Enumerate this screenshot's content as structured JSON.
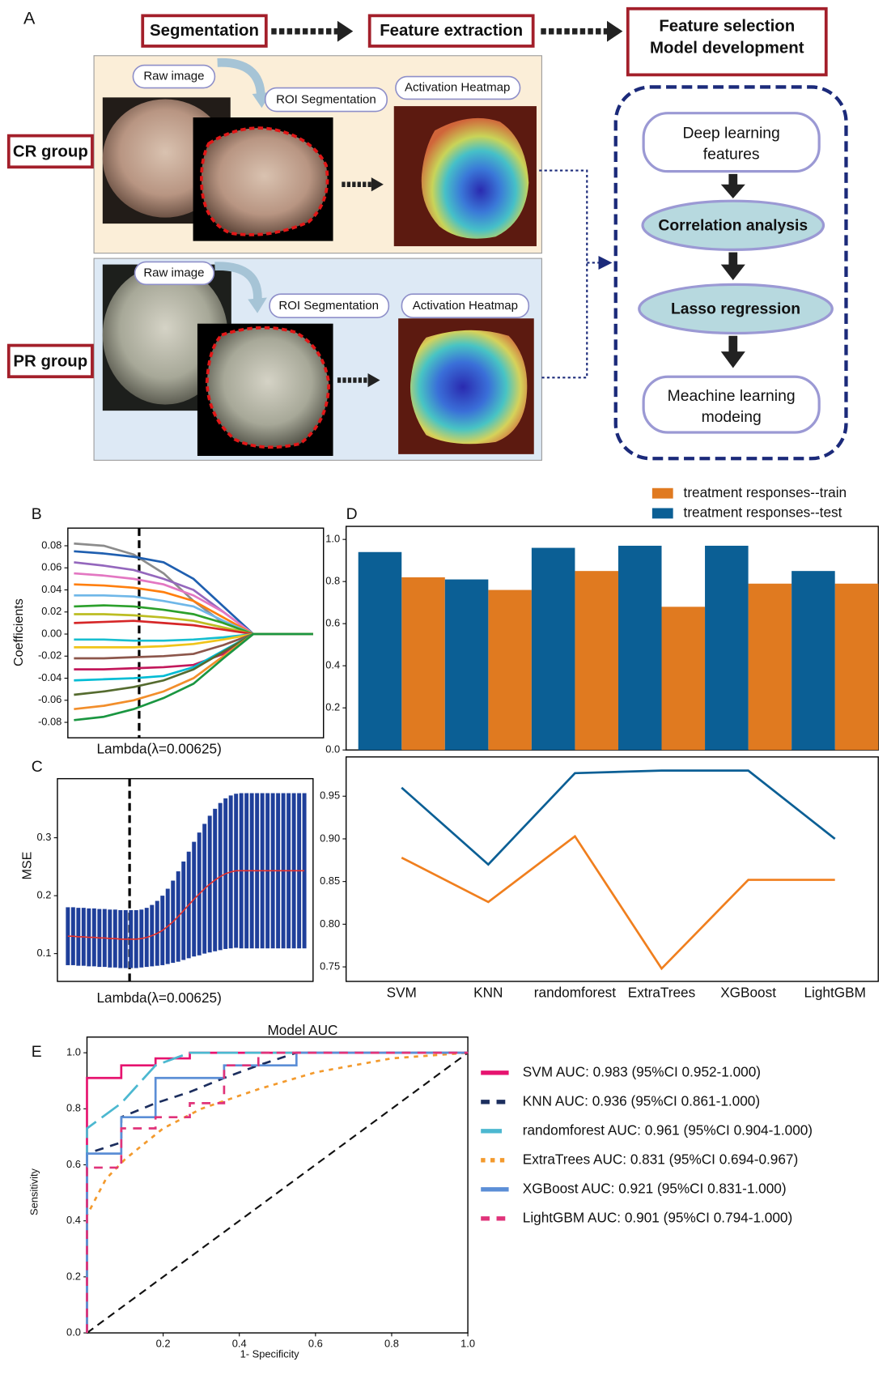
{
  "panel_a": {
    "label": "A",
    "steps": [
      "Segmentation",
      "Feature extraction"
    ],
    "final_step": [
      "Feature selection",
      "Model development"
    ],
    "groups": [
      {
        "name": "CR group",
        "raw": "Raw image",
        "roi": "ROI Segmentation",
        "heatmap": "Activation Heatmap"
      },
      {
        "name": "PR group",
        "raw": "Raw image",
        "roi": "ROI Segmentation",
        "heatmap": "Activation Heatmap"
      }
    ],
    "pipeline": [
      [
        "Deep learning",
        "features"
      ],
      [
        "Correlation analysis"
      ],
      [
        "Lasso regression"
      ],
      [
        "Meachine learning",
        "modeing"
      ]
    ]
  },
  "chart_data": [
    {
      "type": "line",
      "panel": "B",
      "y_label": "Coefficients",
      "x_label": "Lambda(λ=0.00625)",
      "ylim": [
        -0.094,
        0.096
      ],
      "yticks": [
        0.08,
        0.06,
        0.04,
        0.02,
        {
          "value": 0,
          "label": "0.00"
        },
        -0.02,
        -0.04,
        -0.06,
        -0.08
      ],
      "series": [
        {
          "color": "#8c8c8c",
          "values": [
            0.082,
            0.08,
            0.072,
            0.055,
            0.03,
            0.01,
            0,
            0,
            0
          ]
        },
        {
          "color": "#1f5fb0",
          "values": [
            0.075,
            0.073,
            0.07,
            0.065,
            0.05,
            0.025,
            0,
            0,
            0
          ]
        },
        {
          "color": "#9467bd",
          "values": [
            0.065,
            0.062,
            0.058,
            0.05,
            0.04,
            0.02,
            0,
            0,
            0
          ]
        },
        {
          "color": "#e377c2",
          "values": [
            0.055,
            0.053,
            0.05,
            0.045,
            0.035,
            0.02,
            0,
            0,
            0
          ]
        },
        {
          "color": "#ff7f0e",
          "values": [
            0.045,
            0.044,
            0.042,
            0.038,
            0.03,
            0.015,
            0,
            0,
            0
          ]
        },
        {
          "color": "#6fb7e8",
          "values": [
            0.035,
            0.035,
            0.034,
            0.03,
            0.025,
            0.012,
            0,
            0,
            0
          ]
        },
        {
          "color": "#2ca02c",
          "values": [
            0.025,
            0.026,
            0.025,
            0.022,
            0.018,
            0.01,
            0,
            0,
            0
          ]
        },
        {
          "color": "#bcbd22",
          "values": [
            0.018,
            0.018,
            0.017,
            0.015,
            0.012,
            0.006,
            0,
            0,
            0
          ]
        },
        {
          "color": "#d62728",
          "values": [
            0.01,
            0.011,
            0.012,
            0.01,
            0.008,
            0.004,
            0,
            0,
            0
          ]
        },
        {
          "color": "#17becf",
          "values": [
            -0.005,
            -0.005,
            -0.006,
            -0.006,
            -0.005,
            -0.003,
            0,
            0,
            0
          ]
        },
        {
          "color": "#f0c419",
          "values": [
            -0.012,
            -0.012,
            -0.012,
            -0.011,
            -0.009,
            -0.005,
            0,
            0,
            0
          ]
        },
        {
          "color": "#8c564b",
          "values": [
            -0.022,
            -0.022,
            -0.021,
            -0.02,
            -0.018,
            -0.01,
            0,
            0,
            0
          ]
        },
        {
          "color": "#c2185b",
          "values": [
            -0.032,
            -0.032,
            -0.031,
            -0.03,
            -0.028,
            -0.018,
            0,
            0,
            0
          ]
        },
        {
          "color": "#00bcd4",
          "values": [
            -0.042,
            -0.041,
            -0.04,
            -0.038,
            -0.03,
            -0.015,
            0,
            0,
            0
          ]
        },
        {
          "color": "#556b2f",
          "values": [
            -0.055,
            -0.052,
            -0.048,
            -0.042,
            -0.032,
            -0.016,
            0,
            0,
            0
          ]
        },
        {
          "color": "#f28e2b",
          "values": [
            -0.068,
            -0.065,
            -0.06,
            -0.052,
            -0.04,
            -0.02,
            0,
            0,
            0
          ]
        },
        {
          "color": "#1a9641",
          "values": [
            -0.078,
            -0.075,
            -0.068,
            -0.058,
            -0.045,
            -0.022,
            0,
            0,
            0
          ]
        }
      ]
    },
    {
      "type": "errorbar",
      "panel": "C",
      "y_label": "MSE",
      "x_label": "Lambda(λ=0.00625)",
      "ylim": [
        0.052,
        0.402
      ],
      "yticks": [
        0.1,
        0.2,
        0.3
      ],
      "color": "#1f3f9a",
      "line_color": "#e8312a",
      "values": [
        0.13,
        0.13,
        0.129,
        0.129,
        0.128,
        0.128,
        0.127,
        0.127,
        0.126,
        0.126,
        0.125,
        0.125,
        0.125,
        0.125,
        0.126,
        0.128,
        0.131,
        0.135,
        0.14,
        0.147,
        0.155,
        0.164,
        0.174,
        0.184,
        0.194,
        0.203,
        0.212,
        0.22,
        0.227,
        0.233,
        0.238,
        0.241,
        0.243,
        0.243,
        0.243,
        0.243,
        0.243,
        0.243,
        0.243,
        0.243,
        0.243,
        0.243,
        0.243,
        0.243,
        0.243,
        0.243
      ],
      "errors": [
        0.05,
        0.05,
        0.05,
        0.05,
        0.05,
        0.05,
        0.05,
        0.05,
        0.05,
        0.05,
        0.05,
        0.05,
        0.05,
        0.05,
        0.05,
        0.051,
        0.053,
        0.056,
        0.06,
        0.065,
        0.071,
        0.078,
        0.085,
        0.092,
        0.099,
        0.106,
        0.112,
        0.118,
        0.123,
        0.127,
        0.13,
        0.132,
        0.133,
        0.134,
        0.134,
        0.134,
        0.134,
        0.134,
        0.134,
        0.134,
        0.134,
        0.134,
        0.134,
        0.134,
        0.134,
        0.134
      ]
    },
    {
      "type": "bar",
      "panel": "D",
      "ylim": [
        0,
        1.062
      ],
      "yticks": [
        {
          "value": 0,
          "label": "0.0"
        },
        0.2,
        0.4,
        0.6,
        0.8,
        {
          "value": 1,
          "label": "1.0"
        }
      ],
      "series": [
        {
          "name": "treatment responses--train",
          "color": "#e07a20",
          "values": [
            0.82,
            0.76,
            0.85,
            0.68,
            0.79,
            0.79
          ]
        },
        {
          "name": "treatment responses--test",
          "color": "#0b5f95",
          "values": [
            0.94,
            0.81,
            0.96,
            0.97,
            0.97,
            0.85
          ]
        }
      ]
    },
    {
      "type": "line",
      "categories": [
        "SVM",
        "KNN",
        "randomforest",
        "ExtraTrees",
        "XGBoost",
        "LightGBM"
      ],
      "ylim": [
        0.733,
        0.996
      ],
      "yticks": [
        0.75,
        {
          "value": 0.8,
          "label": "0.80"
        },
        0.85,
        {
          "value": 0.9,
          "label": "0.90"
        },
        0.95
      ],
      "series": [
        {
          "color": "#0b5f95",
          "values": [
            0.96,
            0.87,
            0.977,
            0.98,
            0.98,
            0.9
          ]
        },
        {
          "color": "#f07f1e",
          "values": [
            0.878,
            0.826,
            0.903,
            0.748,
            0.852,
            0.852
          ]
        }
      ]
    },
    {
      "type": "line",
      "panel": "E",
      "title": "Model AUC",
      "x_label": "1- Specificity",
      "y_label": "Sensitivity",
      "xlim": [
        0,
        1
      ],
      "ylim": [
        0,
        1.056
      ],
      "xticks": [
        0.2,
        0.4,
        0.6,
        0.8,
        {
          "value": 1,
          "label": "1.0"
        }
      ],
      "yticks": [
        {
          "value": 0,
          "label": "0.0"
        },
        0.2,
        0.4,
        0.6,
        0.8,
        {
          "value": 1,
          "label": "1.0"
        }
      ],
      "series": [
        {
          "name": "SVM AUC: 0.983 (95%CI 0.952-1.000)",
          "color": "#e6136f",
          "dash": "solid",
          "x": [
            0,
            0,
            0.09,
            0.09,
            0.18,
            0.18,
            0.27,
            0.27,
            1
          ],
          "values": [
            0,
            0.91,
            0.91,
            0.955,
            0.955,
            0.98,
            0.98,
            1,
            1
          ]
        },
        {
          "name": "KNN AUC: 0.936 (95%CI 0.861-1.000)",
          "color": "#1c2e5e",
          "dash": "dashed",
          "x": [
            0,
            0,
            0.09,
            0.09,
            0.18,
            0.27,
            0.36,
            0.45,
            0.55,
            1
          ],
          "values": [
            0,
            0.64,
            0.68,
            0.77,
            0.82,
            0.86,
            0.91,
            0.955,
            1,
            1
          ]
        },
        {
          "name": "randomforest AUC: 0.961 (95%CI 0.904-1.000)",
          "color": "#4cb8d0",
          "dash": "longdash",
          "x": [
            0,
            0,
            0.09,
            0.18,
            0.27,
            1
          ],
          "values": [
            0,
            0.73,
            0.82,
            0.955,
            1,
            1
          ]
        },
        {
          "name": "ExtraTrees AUC: 0.831 (95%CI 0.694-0.967)",
          "color": "#f39a2d",
          "dash": "dotted",
          "x": [
            0,
            0,
            0.05,
            0.1,
            0.2,
            0.3,
            0.45,
            0.6,
            0.8,
            1
          ],
          "values": [
            0,
            0.42,
            0.55,
            0.62,
            0.73,
            0.8,
            0.87,
            0.93,
            0.98,
            1
          ]
        },
        {
          "name": "XGBoost AUC: 0.921 (95%CI 0.831-1.000)",
          "color": "#5b8ed6",
          "dash": "solid",
          "x": [
            0,
            0,
            0.09,
            0.09,
            0.18,
            0.18,
            0.36,
            0.36,
            0.55,
            0.55,
            1
          ],
          "values": [
            0,
            0.64,
            0.64,
            0.77,
            0.77,
            0.91,
            0.91,
            0.955,
            0.955,
            1,
            1
          ]
        },
        {
          "name": "LightGBM AUC: 0.901 (95%CI 0.794-1.000)",
          "color": "#e0337a",
          "dash": "dashed",
          "x": [
            0,
            0,
            0.09,
            0.09,
            0.18,
            0.18,
            0.27,
            0.27,
            0.36,
            0.36,
            0.45,
            0.45,
            1
          ],
          "values": [
            0,
            0.59,
            0.59,
            0.73,
            0.73,
            0.77,
            0.77,
            0.82,
            0.82,
            0.955,
            0.955,
            1,
            1
          ]
        }
      ]
    }
  ]
}
